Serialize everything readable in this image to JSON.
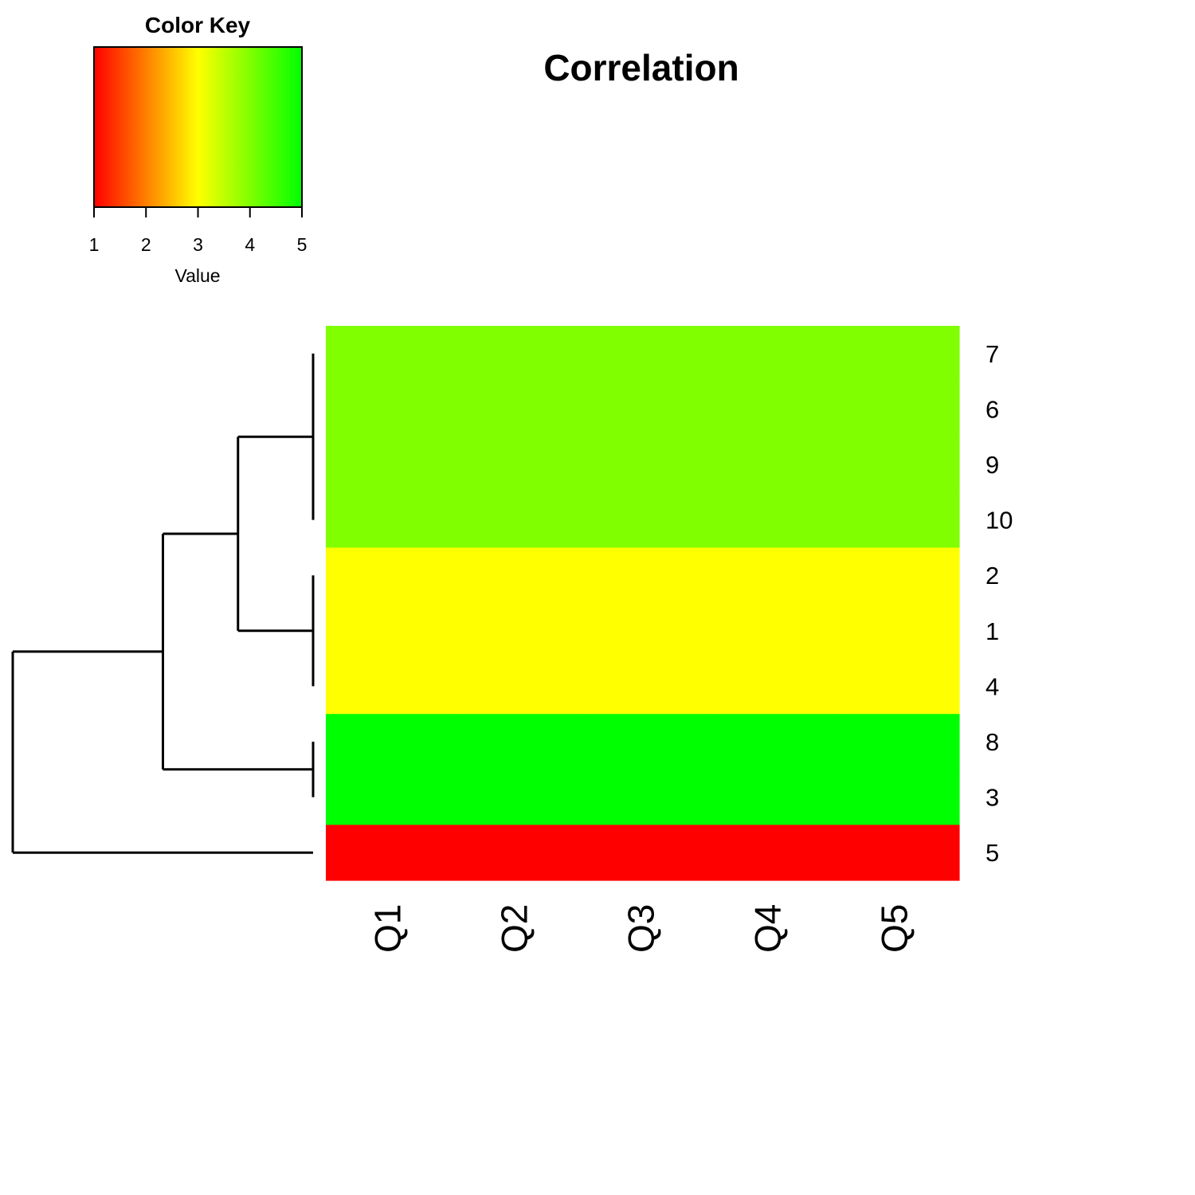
{
  "chart_data": {
    "type": "heatmap",
    "title": "Correlation",
    "columns": [
      "Q1",
      "Q2",
      "Q3",
      "Q4",
      "Q5"
    ],
    "rows": [
      "7",
      "6",
      "9",
      "10",
      "2",
      "1",
      "4",
      "8",
      "3",
      "5"
    ],
    "values": [
      [
        4,
        4,
        4,
        4,
        4
      ],
      [
        4,
        4,
        4,
        4,
        4
      ],
      [
        4,
        4,
        4,
        4,
        4
      ],
      [
        4,
        4,
        4,
        4,
        4
      ],
      [
        3,
        3,
        3,
        3,
        3
      ],
      [
        3,
        3,
        3,
        3,
        3
      ],
      [
        3,
        3,
        3,
        3,
        3
      ],
      [
        5,
        5,
        5,
        5,
        5
      ],
      [
        5,
        5,
        5,
        5,
        5
      ],
      [
        1,
        1,
        1,
        1,
        1
      ]
    ],
    "color_key": {
      "title": "Color Key",
      "xlabel": "Value",
      "range": [
        1,
        5
      ],
      "ticks": [
        1,
        2,
        3,
        4,
        5
      ],
      "colors": [
        "#ff0000",
        "#ffff00",
        "#00ff00"
      ]
    },
    "row_dendrogram": {
      "merges": [
        {
          "members": [
            "7",
            "6",
            "9",
            "10"
          ],
          "height": 0
        },
        {
          "members": [
            "2",
            "1",
            "4"
          ],
          "height": 0
        },
        {
          "members": [
            "8",
            "3"
          ],
          "height": 0
        },
        {
          "members": [
            "7",
            "6",
            "9",
            "10",
            "2",
            "1",
            "4"
          ],
          "height": 1
        },
        {
          "members": [
            "7",
            "6",
            "9",
            "10",
            "2",
            "1",
            "4",
            "8",
            "3"
          ],
          "height": 2
        },
        {
          "members": [
            "7",
            "6",
            "9",
            "10",
            "2",
            "1",
            "4",
            "8",
            "3",
            "5"
          ],
          "height": 4
        }
      ]
    }
  }
}
